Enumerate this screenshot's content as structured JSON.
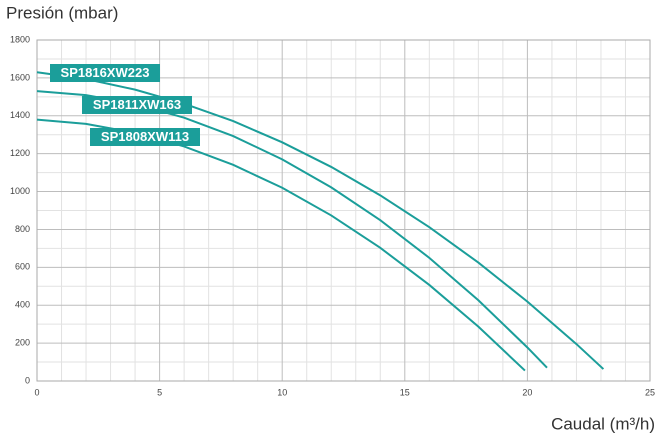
{
  "chart_data": {
    "type": "line",
    "y_label": "Presión (mbar)",
    "x_label": "Caudal (m³/h)",
    "xlim": [
      0,
      25
    ],
    "xticks": [
      0,
      5,
      10,
      15,
      20,
      25
    ],
    "ylim": [
      0,
      1800
    ],
    "yticks": [
      0,
      200,
      400,
      600,
      800,
      1000,
      1200,
      1400,
      1600,
      1800
    ],
    "x_minor_ticks": [
      1,
      2,
      3,
      4,
      6,
      7,
      8,
      9,
      11,
      12,
      13,
      14,
      16,
      17,
      18,
      19,
      21,
      22,
      23,
      24
    ],
    "y_minor_ticks": [
      100,
      300,
      500,
      700,
      900,
      1100,
      1300,
      1500,
      1700
    ],
    "grid": true,
    "series": [
      {
        "name": "SP1816XW223",
        "color": "#1b9e9a",
        "x": [
          0,
          2,
          4,
          6,
          8,
          10,
          12,
          14,
          16,
          18,
          20,
          22,
          23.1
        ],
        "values": [
          1630,
          1594,
          1538,
          1464,
          1372,
          1260,
          1130,
          980,
          812,
          625,
          419,
          195,
          63
        ]
      },
      {
        "name": "SP1811XW163",
        "color": "#1b9e9a",
        "x": [
          0,
          2,
          4,
          6,
          8,
          10,
          12,
          14,
          16,
          18,
          20,
          20.8
        ],
        "values": [
          1530,
          1509,
          1462,
          1390,
          1293,
          1170,
          1022,
          849,
          650,
          426,
          177,
          70
        ]
      },
      {
        "name": "SP1808XW113",
        "color": "#1b9e9a",
        "x": [
          0,
          2,
          4,
          6,
          8,
          10,
          12,
          14,
          16,
          18,
          19.9
        ],
        "values": [
          1380,
          1357,
          1310,
          1238,
          1141,
          1020,
          874,
          703,
          507,
          287,
          55
        ]
      }
    ]
  }
}
